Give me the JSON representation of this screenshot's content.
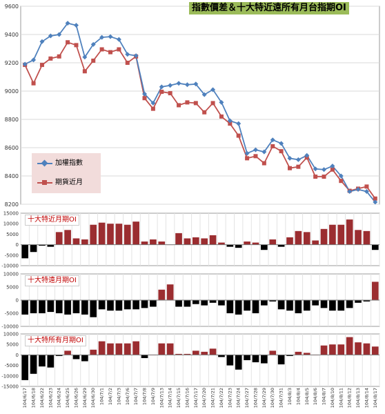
{
  "title": "指數價差＆十大特近遠所有月台指期OI",
  "colors": {
    "index_line": "#4f81bd",
    "futures_line": "#c0504d",
    "positive_bar": "#9b2d30",
    "negative_bar": "#000000",
    "title_bg": "#9bbb59",
    "legend_bg": "#f2dcdb",
    "panel_label": "#c00000"
  },
  "chart_data": [
    {
      "type": "line",
      "title": "指數價差＆十大特近遠所有月台指期OI",
      "ylim": [
        8200,
        9600
      ],
      "yticks": [
        "8200",
        "8400",
        "8600",
        "8800",
        "9000",
        "9200",
        "9400",
        "9600"
      ],
      "legend_position": "middle-left",
      "grid": true,
      "series": [
        {
          "name": "加權指數",
          "values": [
            9190,
            9220,
            9350,
            9390,
            9400,
            9480,
            9465,
            9240,
            9330,
            9380,
            9385,
            9365,
            9260,
            9250,
            8980,
            8915,
            9030,
            9040,
            9055,
            9045,
            9050,
            8975,
            9010,
            8920,
            8790,
            8770,
            8560,
            8585,
            8570,
            8655,
            8630,
            8525,
            8515,
            8545,
            8450,
            8445,
            8470,
            8400,
            8290,
            8305,
            8290,
            8215
          ]
        },
        {
          "name": "期貨近月",
          "values": [
            9185,
            9055,
            9185,
            9230,
            9245,
            9345,
            9325,
            9140,
            9215,
            9295,
            9275,
            9295,
            9200,
            9245,
            8950,
            8875,
            8995,
            8985,
            8900,
            8920,
            8915,
            8850,
            8915,
            8820,
            8770,
            8685,
            8525,
            8540,
            8490,
            8610,
            8575,
            8455,
            8465,
            8530,
            8395,
            8395,
            8445,
            8365,
            8295,
            8310,
            8325,
            8240
          ]
        }
      ]
    },
    {
      "type": "bar",
      "title": "十大特近月期OI",
      "ylim": [
        -10000,
        15000
      ],
      "yticks": [
        "15000",
        "10000",
        "5000",
        "0",
        "-5000",
        "-10000"
      ],
      "values": [
        -6500,
        -3500,
        -500,
        -1000,
        6000,
        7000,
        3000,
        2500,
        9500,
        10500,
        10000,
        10000,
        9500,
        11000,
        1500,
        2500,
        1500,
        0,
        5500,
        3000,
        3500,
        3000,
        4500,
        1000,
        -1000,
        -1500,
        1500,
        1000,
        -2500,
        2500,
        -1000,
        3500,
        6500,
        6000,
        2000,
        7500,
        9500,
        9500,
        12000,
        7000,
        6500,
        -2500
      ]
    },
    {
      "type": "bar",
      "title": "十大特遠月期OI",
      "ylim": [
        -10000,
        10000
      ],
      "yticks": [
        "10000",
        "5000",
        "0",
        "-5000",
        "-10000"
      ],
      "values": [
        -5500,
        -5000,
        -5000,
        -4500,
        -5000,
        -5500,
        -5000,
        -5500,
        -6500,
        -3500,
        -4000,
        -4000,
        -3500,
        -3500,
        -3000,
        -2500,
        4000,
        6000,
        -2500,
        -2500,
        -1500,
        -2000,
        -1000,
        -2000,
        -5000,
        -5500,
        -4000,
        -5000,
        -2000,
        -500,
        -3500,
        -4000,
        -5000,
        -4000,
        -2000,
        -3000,
        -4000,
        -4000,
        -3000,
        -1000,
        -500,
        7000
      ]
    },
    {
      "type": "bar",
      "title": "十大特所有月期OI",
      "ylim": [
        -15000,
        10000
      ],
      "yticks": [
        "10000",
        "5000",
        "0",
        "-5000",
        "-10000",
        "-15000"
      ],
      "values": [
        -12000,
        -9000,
        -5500,
        -6000,
        -500,
        2000,
        -2000,
        -3000,
        2500,
        6500,
        5500,
        5500,
        5500,
        6500,
        -1500,
        0,
        5500,
        5500,
        500,
        500,
        2000,
        1500,
        3000,
        -1000,
        -5000,
        -7000,
        -2500,
        -3500,
        -4000,
        2000,
        -4500,
        -500,
        1500,
        1000,
        0,
        4500,
        5000,
        5000,
        8500,
        6000,
        5500,
        4000
      ]
    }
  ],
  "panels": [
    {
      "label": "十大特近月期OI"
    },
    {
      "label": "十大特遠月期OI"
    },
    {
      "label": "十大特所有月期OI"
    }
  ],
  "categories": [
    "104/6/17",
    "104/6/18",
    "104/6/22",
    "104/6/23",
    "104/6/24",
    "104/6/25",
    "104/6/26",
    "104/6/29",
    "104/6/30",
    "104/7/1",
    "104/7/2",
    "104/7/3",
    "104/7/6",
    "104/7/7",
    "104/7/8",
    "104/7/9",
    "104/7/13",
    "104/7/14",
    "104/7/15",
    "104/7/16",
    "104/7/17",
    "104/7/20",
    "104/7/21",
    "104/7/22",
    "104/7/23",
    "104/7/24",
    "104/7/27",
    "104/7/28",
    "104/7/29",
    "104/7/30",
    "104/7/31",
    "104/8/3",
    "104/8/4",
    "104/8/5",
    "104/8/6",
    "104/8/7",
    "104/8/10",
    "104/8/11",
    "104/8/12",
    "104/8/13",
    "104/8/14",
    "104/8/17"
  ]
}
